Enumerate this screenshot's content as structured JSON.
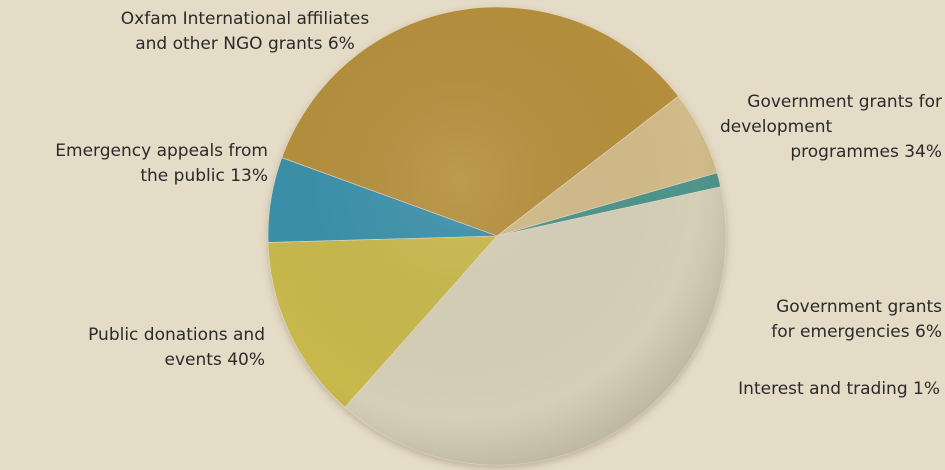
{
  "chart_data": {
    "type": "pie",
    "title": "",
    "slices": [
      {
        "label_lines": [
          "Government grants for",
          "development",
          "programmes 34%"
        ],
        "value": 34,
        "color": "#b58f3c"
      },
      {
        "label_lines": [
          "Government grants",
          "for emergencies 6%"
        ],
        "value": 6,
        "color": "#d2bb8a"
      },
      {
        "label_lines": [
          "Interest and trading 1%"
        ],
        "value": 1,
        "color": "#4f958c"
      },
      {
        "label_lines": [
          "Public donations and",
          "events 40%"
        ],
        "value": 40,
        "color": "#d6cfb8"
      },
      {
        "label_lines": [
          "Emergency appeals from",
          "the public 13%"
        ],
        "value": 13,
        "color": "#c8b94c"
      },
      {
        "label_lines": [
          "Oxfam International affiliates",
          "and other NGO grants 6%"
        ],
        "value": 6,
        "color": "#3b90aa"
      }
    ]
  }
}
